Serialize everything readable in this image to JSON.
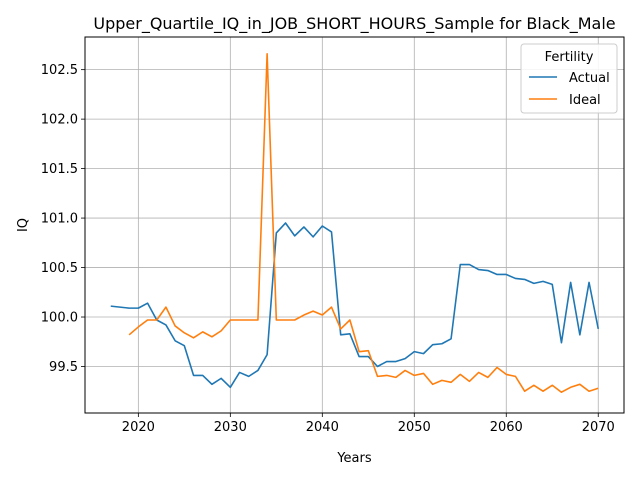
{
  "chart_data": {
    "type": "line",
    "title": "Upper_Quartile_IQ_in_JOB_SHORT_HOURS_Sample for Black_Male",
    "xlabel": "Years",
    "ylabel": "IQ",
    "xlim": [
      2014.2,
      2072.8
    ],
    "ylim": [
      99.03,
      102.83
    ],
    "xticks": [
      2020,
      2030,
      2040,
      2050,
      2060,
      2070
    ],
    "yticks": [
      99.5,
      100.0,
      100.5,
      101.0,
      101.5,
      102.0,
      102.5
    ],
    "grid": true,
    "legend": {
      "title": "Fertility",
      "placement": "upper right"
    },
    "series": [
      {
        "name": "Actual",
        "color": "#1f77b4",
        "x": [
          2017,
          2018,
          2019,
          2020,
          2021,
          2022,
          2023,
          2024,
          2025,
          2026,
          2027,
          2028,
          2029,
          2030,
          2031,
          2032,
          2033,
          2034,
          2035,
          2036,
          2037,
          2038,
          2039,
          2040,
          2041,
          2042,
          2043,
          2044,
          2045,
          2046,
          2047,
          2048,
          2049,
          2050,
          2051,
          2052,
          2053,
          2054,
          2055,
          2056,
          2057,
          2058,
          2059,
          2060,
          2061,
          2062,
          2063,
          2064,
          2065,
          2066,
          2067,
          2068,
          2069,
          2070
        ],
        "values": [
          100.11,
          100.1,
          100.09,
          100.09,
          100.14,
          99.97,
          99.92,
          99.76,
          99.71,
          99.41,
          99.41,
          99.32,
          99.38,
          99.29,
          99.44,
          99.4,
          99.46,
          99.62,
          100.85,
          100.95,
          100.82,
          100.91,
          100.81,
          100.92,
          100.86,
          99.82,
          99.83,
          99.6,
          99.6,
          99.5,
          99.55,
          99.55,
          99.58,
          99.65,
          99.63,
          99.72,
          99.73,
          99.78,
          100.53,
          100.53,
          100.48,
          100.47,
          100.43,
          100.43,
          100.39,
          100.38,
          100.34,
          100.36,
          100.33,
          99.74,
          100.35,
          99.82,
          100.35,
          99.88
        ]
      },
      {
        "name": "Ideal",
        "color": "#ff7f0e",
        "x": [
          2019,
          2020,
          2021,
          2022,
          2023,
          2024,
          2025,
          2026,
          2027,
          2028,
          2029,
          2030,
          2031,
          2032,
          2033,
          2034,
          2035,
          2036,
          2037,
          2038,
          2039,
          2040,
          2041,
          2042,
          2043,
          2044,
          2045,
          2046,
          2047,
          2048,
          2049,
          2050,
          2051,
          2052,
          2053,
          2054,
          2055,
          2056,
          2057,
          2058,
          2059,
          2060,
          2061,
          2062,
          2063,
          2064,
          2065,
          2066,
          2067,
          2068,
          2069,
          2070
        ],
        "values": [
          99.82,
          99.9,
          99.97,
          99.97,
          100.1,
          99.91,
          99.84,
          99.79,
          99.85,
          99.8,
          99.86,
          99.97,
          99.97,
          99.97,
          99.97,
          102.66,
          99.97,
          99.97,
          99.97,
          100.02,
          100.06,
          100.02,
          100.1,
          99.88,
          99.97,
          99.65,
          99.66,
          99.4,
          99.41,
          99.39,
          99.46,
          99.41,
          99.43,
          99.32,
          99.36,
          99.34,
          99.42,
          99.35,
          99.44,
          99.39,
          99.49,
          99.42,
          99.4,
          99.25,
          99.31,
          99.25,
          99.31,
          99.24,
          99.29,
          99.32,
          99.25,
          99.28
        ]
      }
    ]
  }
}
